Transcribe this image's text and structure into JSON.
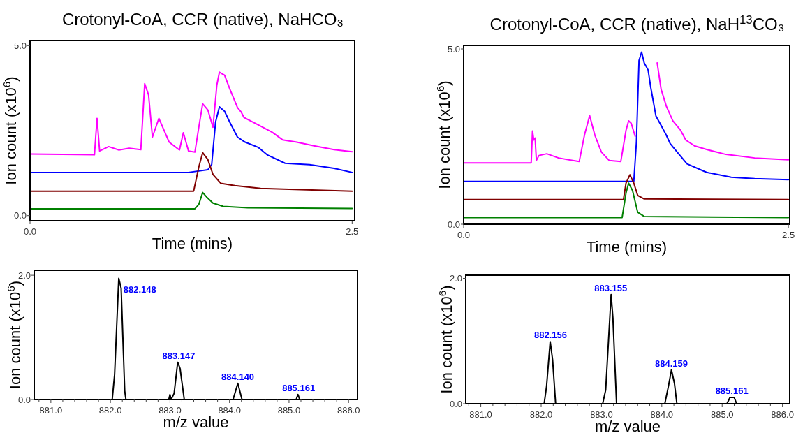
{
  "chart_data": [
    {
      "type": "line",
      "title": "Crotonyl-CoA, CCR (native), NaHCO₃",
      "xlabel": "Time (mins)",
      "ylabel": "Ion count (x10$^{6}$)",
      "xlim": [
        0,
        2.52
      ],
      "ylim": [
        -0.15,
        5.15
      ],
      "xticks": [
        {
          "value": 0,
          "label": "0.0"
        },
        {
          "value": 2.5,
          "label": "2.5"
        }
      ],
      "yticks": [
        {
          "value": 0,
          "label": "0.0"
        },
        {
          "value": 5,
          "label": "5.0"
        }
      ],
      "series": [
        {
          "color": "#ff00ff",
          "x": [
            0,
            0.5,
            0.52,
            0.54,
            0.61,
            0.69,
            0.77,
            0.86,
            0.89,
            0.92,
            0.95,
            1.0,
            1.08,
            1.16,
            1.19,
            1.23,
            1.28,
            1.31,
            1.34,
            1.38,
            1.42,
            1.45,
            1.47,
            1.51,
            1.55,
            1.61,
            1.64,
            1.66,
            1.77,
            1.88,
            1.96,
            2.07,
            2.21,
            2.36,
            2.5
          ],
          "values": [
            1.81,
            1.79,
            2.86,
            1.9,
            2.03,
            1.93,
            1.98,
            1.94,
            3.88,
            3.55,
            2.31,
            2.86,
            2.16,
            1.93,
            2.44,
            1.9,
            1.87,
            2.6,
            3.29,
            3.11,
            2.6,
            3.84,
            4.22,
            4.13,
            3.73,
            3.18,
            3.04,
            2.89,
            2.67,
            2.45,
            2.23,
            2.16,
            2.05,
            1.94,
            1.88
          ]
        },
        {
          "color": "#0000ff",
          "x": [
            0,
            1.23,
            1.38,
            1.41,
            1.44,
            1.47,
            1.51,
            1.55,
            1.61,
            1.67,
            1.77,
            1.84,
            1.98,
            2.17,
            2.36,
            2.5
          ],
          "values": [
            1.27,
            1.27,
            1.35,
            1.5,
            2.75,
            3.2,
            3.07,
            2.75,
            2.31,
            2.16,
            2.01,
            1.79,
            1.54,
            1.5,
            1.39,
            1.27
          ]
        },
        {
          "color": "#800000",
          "x": [
            0,
            1.27,
            1.31,
            1.34,
            1.38,
            1.42,
            1.48,
            1.59,
            1.79,
            2.5
          ],
          "values": [
            0.72,
            0.72,
            1.43,
            1.85,
            1.65,
            1.21,
            0.95,
            0.88,
            0.8,
            0.72
          ]
        },
        {
          "color": "#008000",
          "x": [
            0,
            1.28,
            1.31,
            1.34,
            1.37,
            1.42,
            1.5,
            1.69,
            2.5
          ],
          "values": [
            0.2,
            0.2,
            0.33,
            0.68,
            0.55,
            0.37,
            0.27,
            0.23,
            0.21
          ]
        }
      ]
    },
    {
      "type": "line",
      "title": "Crotonyl-CoA, CCR (native), NaH$^{13}$CO₃",
      "xlabel": "Time (mins)",
      "ylabel": "Ion count (x10$^{6}$)",
      "xlim": [
        0,
        2.51
      ],
      "ylim": [
        0,
        5.1
      ],
      "xticks": [
        {
          "value": 0,
          "label": "0.0"
        },
        {
          "value": 2.5,
          "label": "2.5"
        }
      ],
      "yticks": [
        {
          "value": 0,
          "label": "0.0"
        },
        {
          "value": 5,
          "label": "5.0"
        }
      ],
      "series": [
        {
          "color": "#ff00ff",
          "x": [
            0,
            0.52,
            0.53,
            0.54,
            0.55,
            0.56,
            0.58,
            0.64,
            0.73,
            0.84,
            0.89,
            0.93,
            0.97,
            1.01,
            1.06,
            1.12,
            1.21,
            1.25,
            1.27,
            1.29,
            1.32,
            1.34,
            1.44,
            1.49,
            1.52,
            1.56,
            1.61,
            1.67,
            1.71,
            1.78,
            1.87,
            2.02,
            2.24,
            2.5
          ],
          "values": [
            1.75,
            1.75,
            2.66,
            2.4,
            2.46,
            1.82,
            1.96,
            2.01,
            1.89,
            1.82,
            1.79,
            2.54,
            3.1,
            2.54,
            2.06,
            1.82,
            1.79,
            2.68,
            2.95,
            2.88,
            2.51,
            null,
            null,
            4.6,
            3.85,
            3.37,
            2.95,
            2.68,
            2.4,
            2.23,
            2.13,
            1.99,
            1.89,
            1.84
          ]
        },
        {
          "color": "#0000ff",
          "x": [
            0,
            1.31,
            1.33,
            1.35,
            1.37,
            1.39,
            1.42,
            1.44,
            1.48,
            1.52,
            1.56,
            1.59,
            1.65,
            1.72,
            1.87,
            2.06,
            2.24,
            2.5
          ],
          "values": [
            1.22,
            1.22,
            2.34,
            4.67,
            4.91,
            4.6,
            4.4,
            3.91,
            3.09,
            2.82,
            2.54,
            2.3,
            2.03,
            1.72,
            1.48,
            1.34,
            1.3,
            1.27
          ]
        },
        {
          "color": "#800000",
          "x": [
            0,
            1.23,
            1.25,
            1.28,
            1.31,
            1.34,
            1.39,
            2.5
          ],
          "values": [
            0.7,
            0.7,
            1.17,
            1.41,
            1.17,
            0.82,
            0.72,
            0.7
          ]
        },
        {
          "color": "#008000",
          "x": [
            0,
            1.22,
            1.25,
            1.27,
            1.3,
            1.34,
            1.39,
            2.5
          ],
          "values": [
            0.19,
            0.19,
            0.89,
            1.17,
            0.96,
            0.34,
            0.22,
            0.19
          ]
        }
      ]
    },
    {
      "type": "line",
      "xlabel": "m/z value",
      "ylabel": "Ion count (x10$^{6}$)",
      "xlim": [
        880.72,
        886.15
      ],
      "ylim": [
        0,
        2.08
      ],
      "xticks": [
        {
          "value": 880.8,
          "label": null
        },
        {
          "value": 881,
          "label": "881.0"
        },
        {
          "value": 881.2,
          "label": null
        },
        {
          "value": 881.4,
          "label": null
        },
        {
          "value": 881.6,
          "label": null
        },
        {
          "value": 881.8,
          "label": null
        },
        {
          "value": 882,
          "label": "882.0"
        },
        {
          "value": 882.2,
          "label": null
        },
        {
          "value": 882.4,
          "label": null
        },
        {
          "value": 882.6,
          "label": null
        },
        {
          "value": 882.8,
          "label": null
        },
        {
          "value": 883,
          "label": "883.0"
        },
        {
          "value": 883.2,
          "label": null
        },
        {
          "value": 883.4,
          "label": null
        },
        {
          "value": 883.6,
          "label": null
        },
        {
          "value": 883.8,
          "label": null
        },
        {
          "value": 884,
          "label": "884.0"
        },
        {
          "value": 884.2,
          "label": null
        },
        {
          "value": 884.4,
          "label": null
        },
        {
          "value": 884.6,
          "label": null
        },
        {
          "value": 884.8,
          "label": null
        },
        {
          "value": 885,
          "label": "885.0"
        },
        {
          "value": 885.2,
          "label": null
        },
        {
          "value": 885.4,
          "label": null
        },
        {
          "value": 885.6,
          "label": null
        },
        {
          "value": 885.8,
          "label": null
        },
        {
          "value": 886,
          "label": "886.0"
        }
      ],
      "yticks": [
        {
          "value": 0,
          "label": "0.0"
        },
        {
          "value": 2,
          "label": "2.0"
        }
      ],
      "series": [
        {
          "color": "#000000",
          "x": [
            880.72,
            882.03,
            882.07,
            882.14,
            882.18,
            882.24,
            882.26,
            882.98,
            883.0,
            883.02,
            883.07,
            883.13,
            883.17,
            883.24,
            884.06,
            884.14,
            884.21,
            885.12,
            885.15,
            885.18,
            886.15
          ],
          "values": [
            0,
            0,
            0.4,
            1.95,
            1.79,
            0.14,
            0,
            0,
            0.08,
            0,
            0.1,
            0.6,
            0.5,
            0,
            0,
            0.26,
            0,
            0,
            0.08,
            0,
            0
          ]
        }
      ],
      "annotations": [
        {
          "text": "882.148",
          "x": 882.148,
          "y": 1.95
        },
        {
          "text": "883.147",
          "x": 883.147,
          "y": 0.6
        },
        {
          "text": "884.140",
          "x": 884.14,
          "y": 0.26
        },
        {
          "text": "885.161",
          "x": 885.161,
          "y": 0.08
        }
      ]
    },
    {
      "type": "line",
      "xlabel": "m/z value",
      "ylabel": "Ion count (x10$^{6}$)",
      "xlim": [
        880.75,
        886.12
      ],
      "ylim": [
        0,
        2.05
      ],
      "xticks": [
        {
          "value": 880.8,
          "label": null
        },
        {
          "value": 881,
          "label": "881.0"
        },
        {
          "value": 881.2,
          "label": null
        },
        {
          "value": 881.4,
          "label": null
        },
        {
          "value": 881.6,
          "label": null
        },
        {
          "value": 881.8,
          "label": null
        },
        {
          "value": 882,
          "label": "882.0"
        },
        {
          "value": 882.2,
          "label": null
        },
        {
          "value": 882.4,
          "label": null
        },
        {
          "value": 882.6,
          "label": null
        },
        {
          "value": 882.8,
          "label": null
        },
        {
          "value": 883,
          "label": "883.0"
        },
        {
          "value": 883.2,
          "label": null
        },
        {
          "value": 883.4,
          "label": null
        },
        {
          "value": 883.6,
          "label": null
        },
        {
          "value": 883.8,
          "label": null
        },
        {
          "value": 884,
          "label": "884.0"
        },
        {
          "value": 884.2,
          "label": null
        },
        {
          "value": 884.4,
          "label": null
        },
        {
          "value": 884.6,
          "label": null
        },
        {
          "value": 884.8,
          "label": null
        },
        {
          "value": 885,
          "label": "885.0"
        },
        {
          "value": 885.2,
          "label": null
        },
        {
          "value": 885.4,
          "label": null
        },
        {
          "value": 885.6,
          "label": null
        },
        {
          "value": 885.8,
          "label": null
        },
        {
          "value": 886,
          "label": "886.0"
        }
      ],
      "yticks": [
        {
          "value": 0,
          "label": "0.0"
        },
        {
          "value": 2,
          "label": "2.0"
        }
      ],
      "series": [
        {
          "color": "#000000",
          "x": [
            880.75,
            882.05,
            882.09,
            882.15,
            882.19,
            882.24,
            883.02,
            883.07,
            883.16,
            883.19,
            883.25,
            884.05,
            884.11,
            884.16,
            884.21,
            884.25,
            885.08,
            885.13,
            885.2,
            885.24,
            886.12
          ],
          "values": [
            0,
            0,
            0.28,
            0.99,
            0.7,
            0,
            0,
            0.22,
            1.74,
            1.36,
            0,
            0,
            0.28,
            0.54,
            0.32,
            0,
            0,
            0.1,
            0.1,
            0,
            0
          ]
        }
      ],
      "annotations": [
        {
          "text": "882.156",
          "x": 882.156,
          "y": 0.99
        },
        {
          "text": "883.155",
          "x": 883.155,
          "y": 1.74
        },
        {
          "text": "884.159",
          "x": 884.159,
          "y": 0.54
        },
        {
          "text": "885.161",
          "x": 885.161,
          "y": 0.1
        }
      ]
    }
  ]
}
